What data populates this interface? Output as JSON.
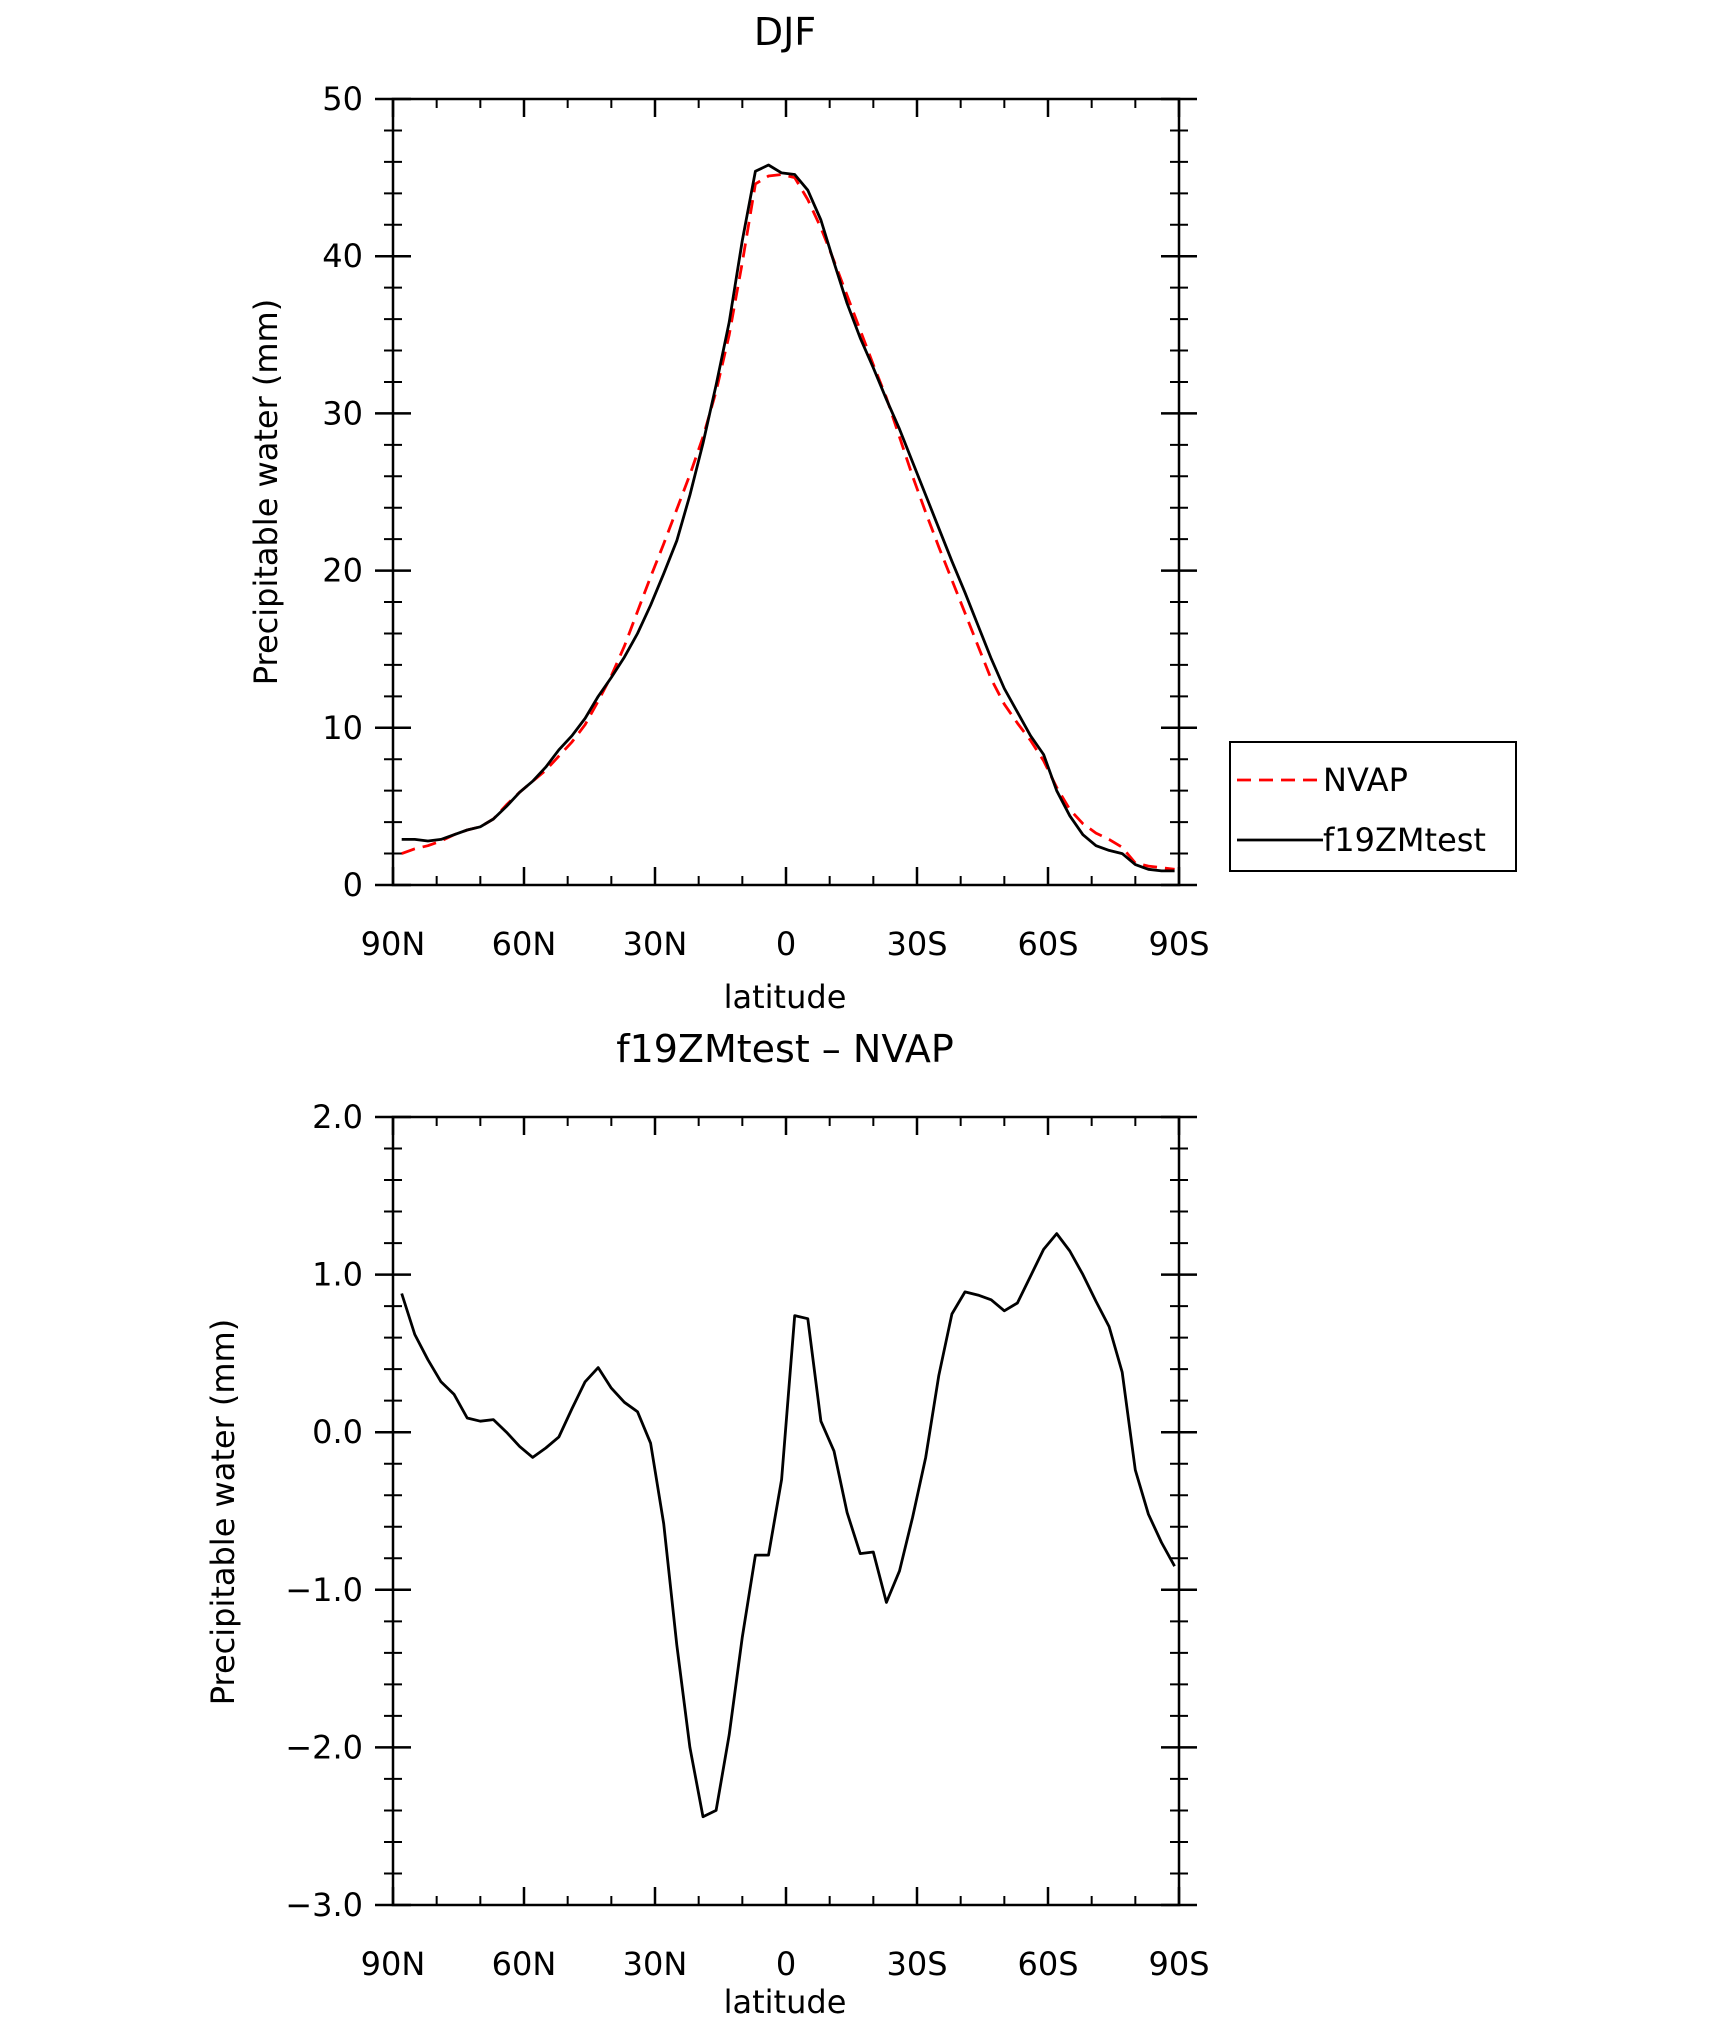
{
  "chart_data": [
    {
      "type": "line",
      "title": "DJF",
      "xlabel": "latitude",
      "ylabel": "Precipitable water (mm)",
      "xlim": [
        90,
        -90
      ],
      "ylim": [
        0,
        50
      ],
      "xticks": [
        90,
        60,
        30,
        0,
        -30,
        -60,
        -90
      ],
      "xtick_labels": [
        "90N",
        "60N",
        "30N",
        "0",
        "30S",
        "60S",
        "90S"
      ],
      "yticks": [
        0,
        10,
        20,
        30,
        40,
        50
      ],
      "ytick_labels": [
        "0",
        "10",
        "20",
        "30",
        "40",
        "50"
      ],
      "grid": false,
      "legend_position": "right",
      "x": [
        88,
        85,
        82,
        79,
        76,
        73,
        70,
        67,
        64,
        61,
        58,
        55,
        52,
        49,
        46,
        43,
        40,
        37,
        34,
        31,
        28,
        25,
        22,
        19,
        16,
        13,
        10,
        7,
        4,
        1,
        -2,
        -5,
        -8,
        -11,
        -14,
        -17,
        -20,
        -23,
        -26,
        -29,
        -32,
        -35,
        -38,
        -41,
        -44,
        -47,
        -50,
        -53,
        -56,
        -59,
        -62,
        -65,
        -68,
        -71,
        -74,
        -77,
        -80,
        -83,
        -86,
        -89
      ],
      "series": [
        {
          "name": "NVAP",
          "color": "#ff0000",
          "dash": "dashed",
          "values": [
            2.0,
            2.3,
            2.5,
            2.8,
            3.2,
            3.5,
            3.7,
            4.2,
            5.1,
            5.9,
            6.6,
            7.3,
            8.2,
            9.1,
            10.2,
            11.7,
            13.3,
            15.2,
            17.4,
            19.6,
            21.7,
            23.9,
            26.1,
            28.5,
            31.4,
            35.0,
            39.6,
            44.6,
            45.1,
            45.2,
            45.0,
            43.6,
            41.8,
            39.7,
            37.5,
            35.3,
            33.1,
            31.0,
            28.5,
            26.0,
            23.7,
            21.5,
            19.4,
            17.3,
            15.2,
            13.1,
            11.5,
            10.3,
            9.2,
            7.9,
            6.2,
            4.8,
            3.9,
            3.3,
            2.9,
            2.4,
            1.4,
            1.2,
            1.1,
            1.0
          ]
        },
        {
          "name": "f19ZMtest",
          "color": "#000000",
          "dash": "solid",
          "values": [
            2.9,
            2.9,
            2.8,
            2.9,
            3.2,
            3.5,
            3.7,
            4.2,
            5.0,
            5.9,
            6.6,
            7.5,
            8.6,
            9.5,
            10.6,
            12.0,
            13.2,
            14.5,
            16.0,
            17.8,
            19.8,
            21.9,
            24.8,
            28.1,
            31.8,
            35.8,
            41.0,
            45.4,
            45.8,
            45.3,
            45.2,
            44.2,
            42.3,
            39.6,
            37.0,
            34.8,
            32.9,
            30.9,
            29.0,
            26.9,
            24.8,
            22.7,
            20.6,
            18.6,
            16.5,
            14.4,
            12.5,
            11.0,
            9.5,
            8.3,
            6.0,
            4.4,
            3.2,
            2.5,
            2.2,
            2.0,
            1.3,
            1.0,
            0.9,
            0.9
          ]
        }
      ]
    },
    {
      "type": "line",
      "title": "f19ZMtest – NVAP",
      "xlabel": "latitude",
      "ylabel": "Precipitable water (mm)",
      "xlim": [
        90,
        -90
      ],
      "ylim": [
        -3.0,
        2.0
      ],
      "xticks": [
        90,
        60,
        30,
        0,
        -30,
        -60,
        -90
      ],
      "xtick_labels": [
        "90N",
        "60N",
        "30N",
        "0",
        "30S",
        "60S",
        "90S"
      ],
      "yticks": [
        -3.0,
        -2.0,
        -1.0,
        0.0,
        1.0,
        2.0
      ],
      "ytick_labels": [
        "−3.0",
        "−2.0",
        "−1.0",
        "0.0",
        "1.0",
        "2.0"
      ],
      "grid": false,
      "x": [
        88,
        85,
        82,
        79,
        76,
        73,
        70,
        67,
        64,
        61,
        58,
        55,
        52,
        49,
        46,
        43,
        40,
        37,
        34,
        31,
        28,
        25,
        22,
        19,
        16,
        13,
        10,
        7,
        4,
        1,
        -2,
        -5,
        -8,
        -11,
        -14,
        -17,
        -20,
        -23,
        -26,
        -29,
        -32,
        -35,
        -38,
        -41,
        -44,
        -47,
        -50,
        -53,
        -56,
        -59,
        -62,
        -65,
        -68,
        -71,
        -74,
        -77,
        -80,
        -83,
        -86,
        -89
      ],
      "series": [
        {
          "color": "#000000",
          "dash": "solid",
          "values": [
            0.88,
            0.62,
            0.46,
            0.32,
            0.24,
            0.09,
            0.07,
            0.08,
            0.0,
            -0.09,
            -0.16,
            -0.1,
            -0.03,
            0.15,
            0.32,
            0.41,
            0.28,
            0.19,
            0.13,
            -0.07,
            -0.58,
            -1.35,
            -2.0,
            -2.44,
            -2.4,
            -1.92,
            -1.3,
            -0.78,
            -0.78,
            -0.3,
            0.74,
            0.72,
            0.07,
            -0.12,
            -0.51,
            -0.77,
            -0.76,
            -1.08,
            -0.88,
            -0.54,
            -0.16,
            0.36,
            0.75,
            0.89,
            0.87,
            0.84,
            0.77,
            0.82,
            0.99,
            1.16,
            1.26,
            1.15,
            1.0,
            0.83,
            0.67,
            0.38,
            -0.24,
            -0.52,
            -0.7,
            -0.85
          ]
        }
      ]
    }
  ],
  "legend": {
    "items": [
      {
        "label": "NVAP",
        "color": "#ff0000",
        "dash": "dashed"
      },
      {
        "label": "f19ZMtest",
        "color": "#000000",
        "dash": "solid"
      }
    ]
  }
}
